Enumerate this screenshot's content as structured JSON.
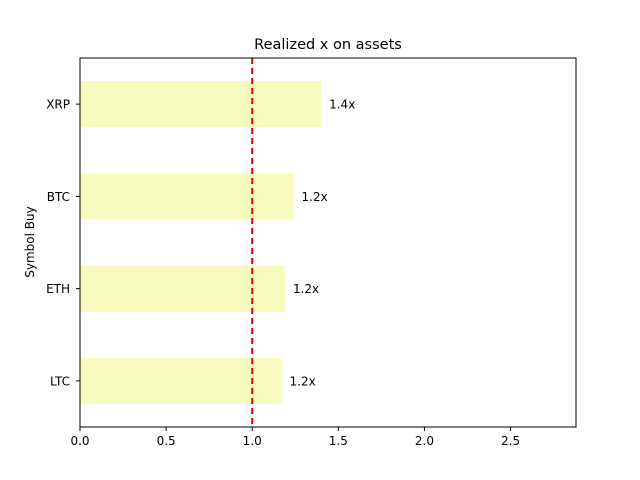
{
  "chart_data": {
    "type": "bar",
    "orientation": "horizontal",
    "title": "Realized x on assets",
    "xlabel": "",
    "ylabel": "Symbol Buy",
    "categories": [
      "XRP",
      "BTC",
      "ETH",
      "LTC"
    ],
    "values": [
      1.4,
      1.24,
      1.19,
      1.17
    ],
    "data_labels": [
      "1.4x",
      "1.2x",
      "1.2x",
      "1.2x"
    ],
    "xlim": [
      0,
      2.88
    ],
    "xticks": [
      "0.0",
      "0.5",
      "1.0",
      "1.5",
      "2.0",
      "2.5"
    ],
    "reference_line": {
      "value": 1.0,
      "style": "dashed",
      "color": "#e00000"
    },
    "bar_color": "#f7fcbe",
    "grid": false
  }
}
